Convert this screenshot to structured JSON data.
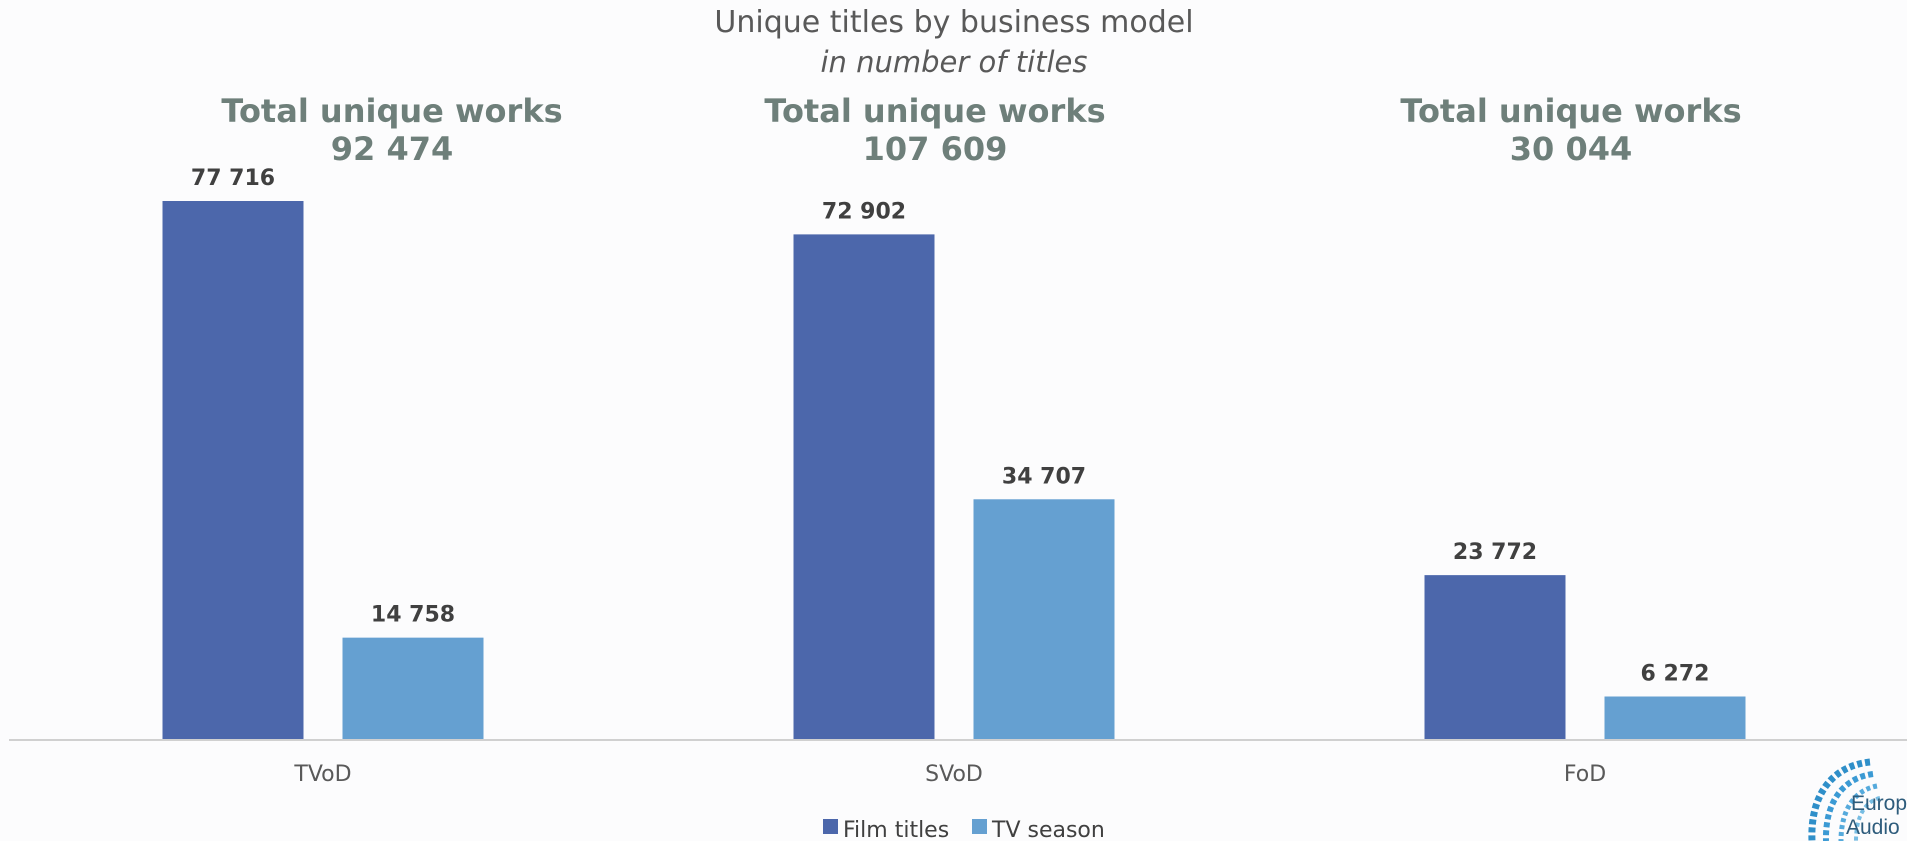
{
  "chart_data": {
    "type": "bar",
    "title": "Unique titles by business model",
    "subtitle": "in number of titles",
    "categories": [
      "TVoD",
      "SVoD",
      "FoD"
    ],
    "series": [
      {
        "name": "Film titles",
        "values": [
          77716,
          72902,
          23772
        ],
        "labels": [
          "77 716",
          "72 902",
          "23 772"
        ],
        "color": "#4c67ab"
      },
      {
        "name": "TV season",
        "values": [
          14758,
          34707,
          6272
        ],
        "labels": [
          "14 758",
          "34 707",
          "6 272"
        ],
        "color": "#65a0d1"
      }
    ],
    "group_totals": [
      {
        "heading": "Total unique works",
        "value": "92 474"
      },
      {
        "heading": "Total unique works",
        "value": "107 609"
      },
      {
        "heading": "Total unique works",
        "value": "30 044"
      }
    ],
    "ylim": [
      0,
      77716
    ],
    "grid": false,
    "legend": "bottom-center"
  },
  "logo": {
    "text_line1": "Europe",
    "text_line2": "Audio"
  },
  "colors": {
    "axis": "#d0d0d0",
    "heading": "#6e7f7a",
    "logo": "#2f8fc9"
  }
}
